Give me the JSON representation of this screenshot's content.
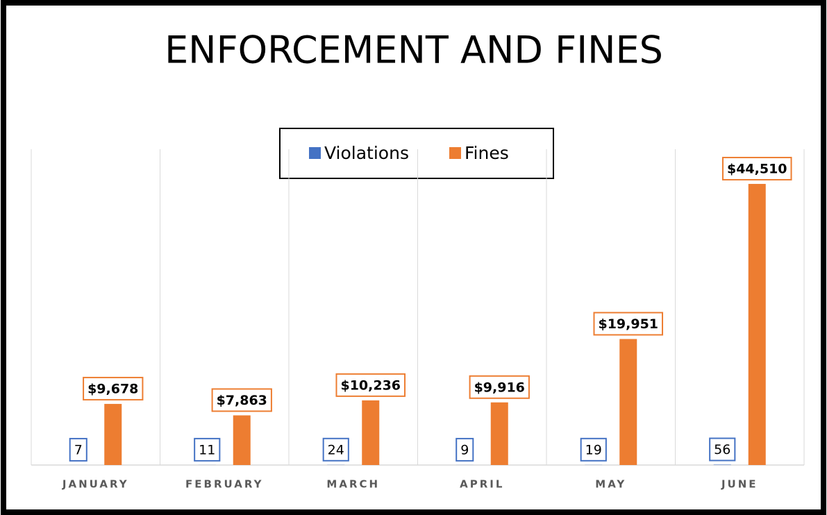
{
  "chart_data": {
    "type": "bar",
    "title": "ENFORCEMENT AND FINES",
    "categories": [
      "JANUARY",
      "FEBRUARY",
      "MARCH",
      "APRIL",
      "MAY",
      "JUNE"
    ],
    "series": [
      {
        "name": "Violations",
        "color": "#4472c4",
        "values": [
          7,
          11,
          24,
          9,
          19,
          56
        ]
      },
      {
        "name": "Fines",
        "color": "#ed7d31",
        "values": [
          9678,
          7863,
          10236,
          9916,
          19951,
          44510
        ],
        "value_labels": [
          "$9,678",
          "$7,863",
          "$10,236",
          "$9,916",
          "$19,951",
          "$44,510"
        ]
      }
    ],
    "ylim": [
      0,
      50000
    ],
    "legend": "top"
  }
}
